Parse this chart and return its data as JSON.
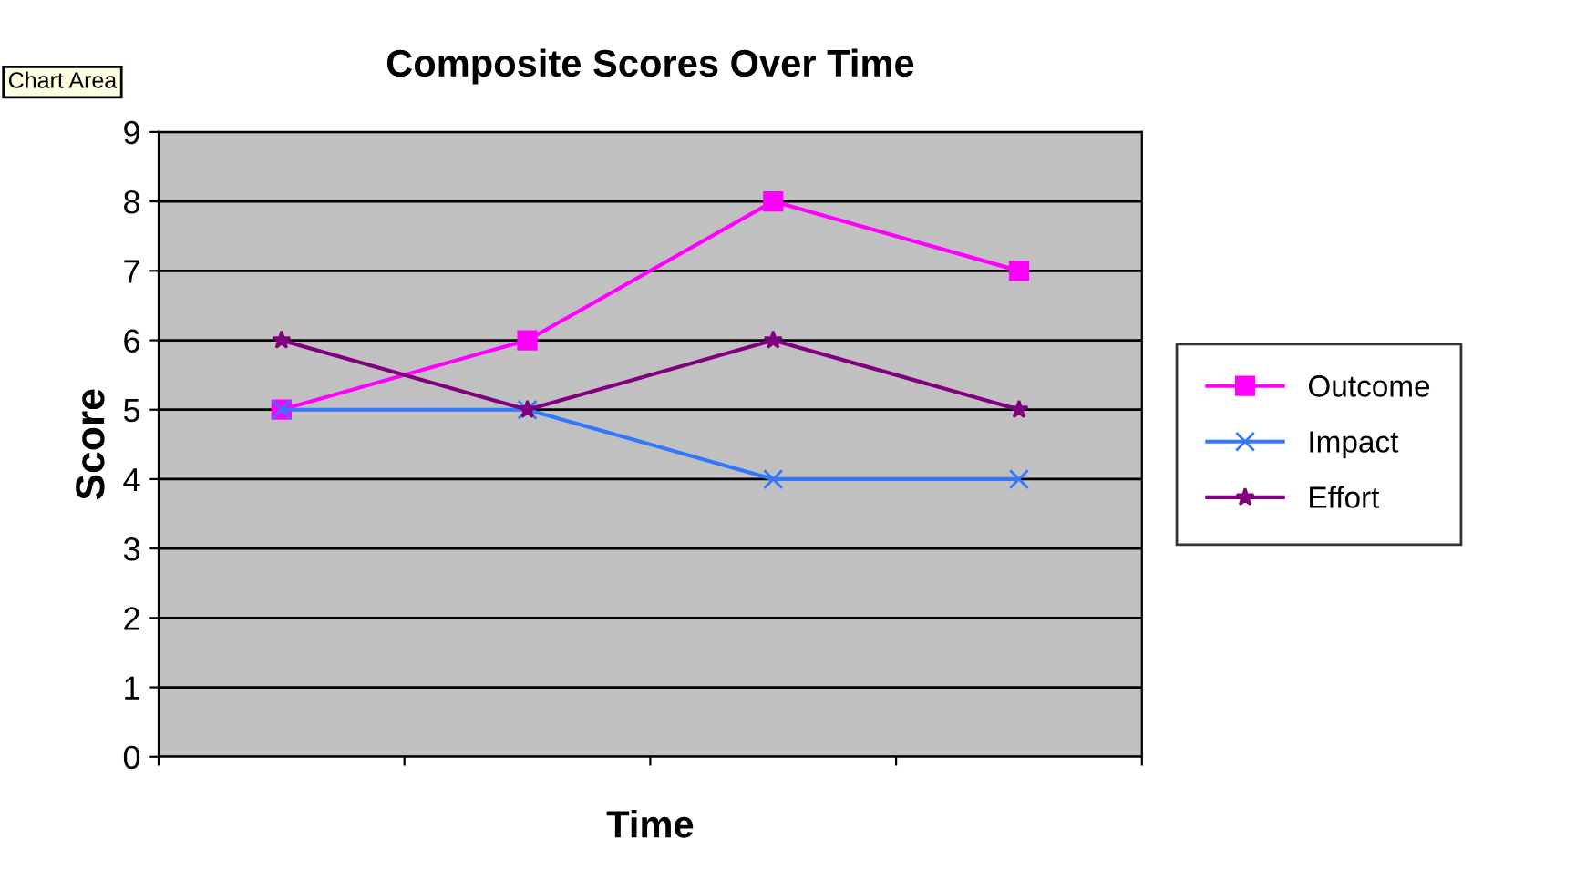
{
  "chart_data": {
    "type": "line",
    "title": "Composite Scores Over Time",
    "xlabel": "Time",
    "ylabel": "Score",
    "categories": [
      null,
      null,
      null,
      null
    ],
    "series": [
      {
        "name": "Outcome",
        "color": "#ff00ff",
        "marker": "square",
        "values": [
          5,
          6,
          8,
          7
        ]
      },
      {
        "name": "Impact",
        "color": "#3377ff",
        "marker": "cross",
        "values": [
          5,
          5,
          4,
          4
        ]
      },
      {
        "name": "Effort",
        "color": "#800080",
        "marker": "star",
        "values": [
          6,
          5,
          6,
          5
        ]
      }
    ],
    "ylim": [
      0,
      9
    ],
    "yticks": [
      0,
      1,
      2,
      3,
      4,
      5,
      6,
      7,
      8,
      9
    ],
    "grid": "y",
    "legend": "right",
    "annotations": [
      "Chart Area"
    ]
  }
}
